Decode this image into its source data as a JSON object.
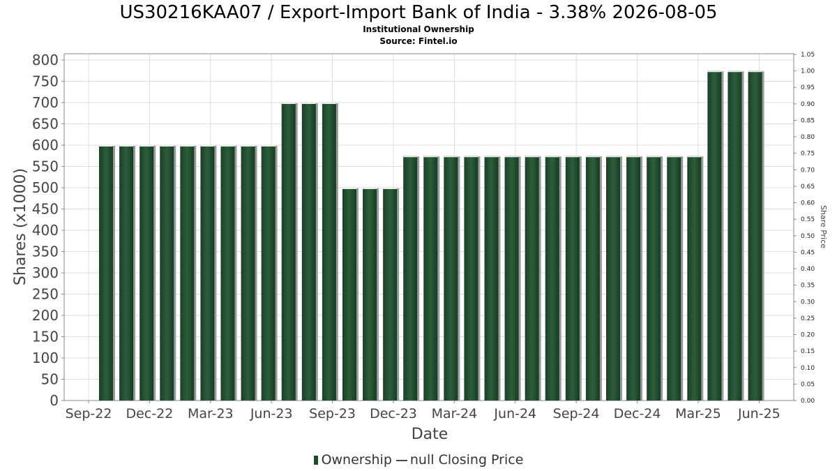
{
  "title": "US30216KAA07 / Export-Import Bank of India - 3.38% 2026-08-05",
  "subtitle": "Institutional Ownership",
  "source": "Source: Fintel.io",
  "legend": {
    "ownership": "Ownership",
    "closing_price": "null Closing Price"
  },
  "colors": {
    "bar": "#1e4a2c",
    "bar_highlight": "#3f7a50",
    "grid": "#dddddd"
  },
  "chart_data": {
    "type": "bar",
    "xlabel": "Date",
    "ylabel": "Shares (x1000)",
    "y2label": "Share Price",
    "ylim": [
      0,
      800
    ],
    "y2lim": [
      0,
      1.05
    ],
    "yticks": [
      0,
      50,
      100,
      150,
      200,
      250,
      300,
      350,
      400,
      450,
      500,
      550,
      600,
      650,
      700,
      750,
      800
    ],
    "y2ticks": [
      "0.00",
      "0.05",
      "0.10",
      "0.15",
      "0.20",
      "0.25",
      "0.30",
      "0.35",
      "0.40",
      "0.45",
      "0.50",
      "0.55",
      "0.60",
      "0.65",
      "0.70",
      "0.75",
      "0.80",
      "0.85",
      "0.90",
      "0.95",
      "1.00",
      "1.05"
    ],
    "xticks": [
      "Sep-22",
      "Dec-22",
      "Mar-23",
      "Jun-23",
      "Sep-23",
      "Dec-23",
      "Mar-24",
      "Jun-24",
      "Sep-24",
      "Dec-24",
      "Mar-25",
      "Jun-25"
    ],
    "grid": true,
    "series": [
      {
        "name": "Ownership",
        "values": [
          600,
          600,
          600,
          600,
          600,
          600,
          600,
          600,
          600,
          700,
          700,
          700,
          500,
          500,
          500,
          575,
          575,
          575,
          575,
          575,
          575,
          575,
          575,
          575,
          575,
          575,
          575,
          575,
          575,
          575,
          775,
          775,
          775
        ]
      }
    ]
  }
}
